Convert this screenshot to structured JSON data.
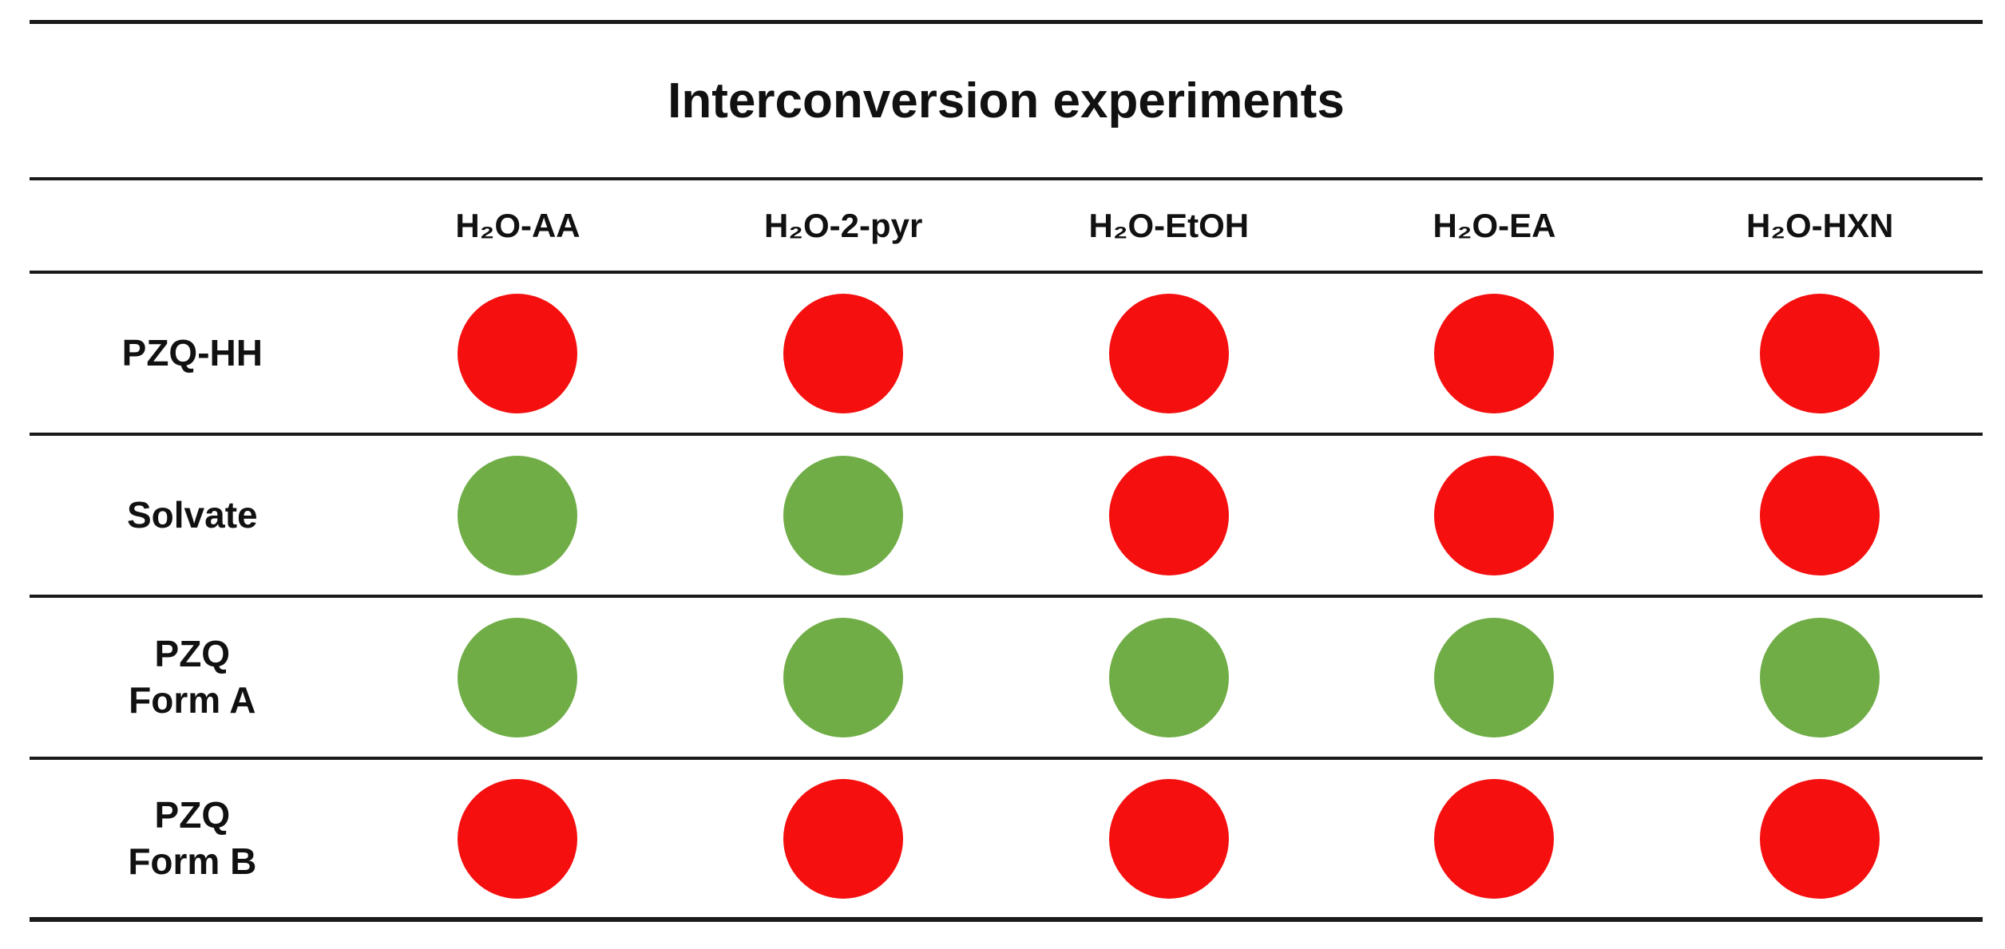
{
  "figure": {
    "title": "Interconversion experiments"
  },
  "table": {
    "corner_label": "",
    "columns": [
      "H₂O-AA",
      "H₂O-2-pyr",
      "H₂O-EtOH",
      "H₂O-EA",
      "H₂O-HXN"
    ],
    "rows": [
      {
        "label": "PZQ-HH",
        "cells": [
          "red",
          "red",
          "red",
          "red",
          "red"
        ]
      },
      {
        "label": "Solvate",
        "cells": [
          "green",
          "green",
          "red",
          "red",
          "red"
        ]
      },
      {
        "label": "PZQ\nForm A",
        "cells": [
          "green",
          "green",
          "green",
          "green",
          "green"
        ]
      },
      {
        "label": "PZQ\nForm B",
        "cells": [
          "red",
          "red",
          "red",
          "red",
          "red"
        ]
      }
    ]
  },
  "colors": {
    "red": "#f50f0f",
    "green": "#70ad47",
    "line": "#1a1a1a"
  },
  "chart_data": {
    "type": "table",
    "title": "Interconversion experiments",
    "columns": [
      "H2O-AA",
      "H2O-2-pyr",
      "H2O-EtOH",
      "H2O-EA",
      "H2O-HXN"
    ],
    "rows": [
      "PZQ-HH",
      "Solvate",
      "PZQ Form A",
      "PZQ Form B"
    ],
    "values": [
      [
        "red",
        "red",
        "red",
        "red",
        "red"
      ],
      [
        "green",
        "green",
        "red",
        "red",
        "red"
      ],
      [
        "green",
        "green",
        "green",
        "green",
        "green"
      ],
      [
        "red",
        "red",
        "red",
        "red",
        "red"
      ]
    ],
    "legend_colors": {
      "red": "#f50f0f",
      "green": "#70ad47"
    },
    "layout": "row labels in first column; one colored dot per cell; horizontal rules only"
  }
}
